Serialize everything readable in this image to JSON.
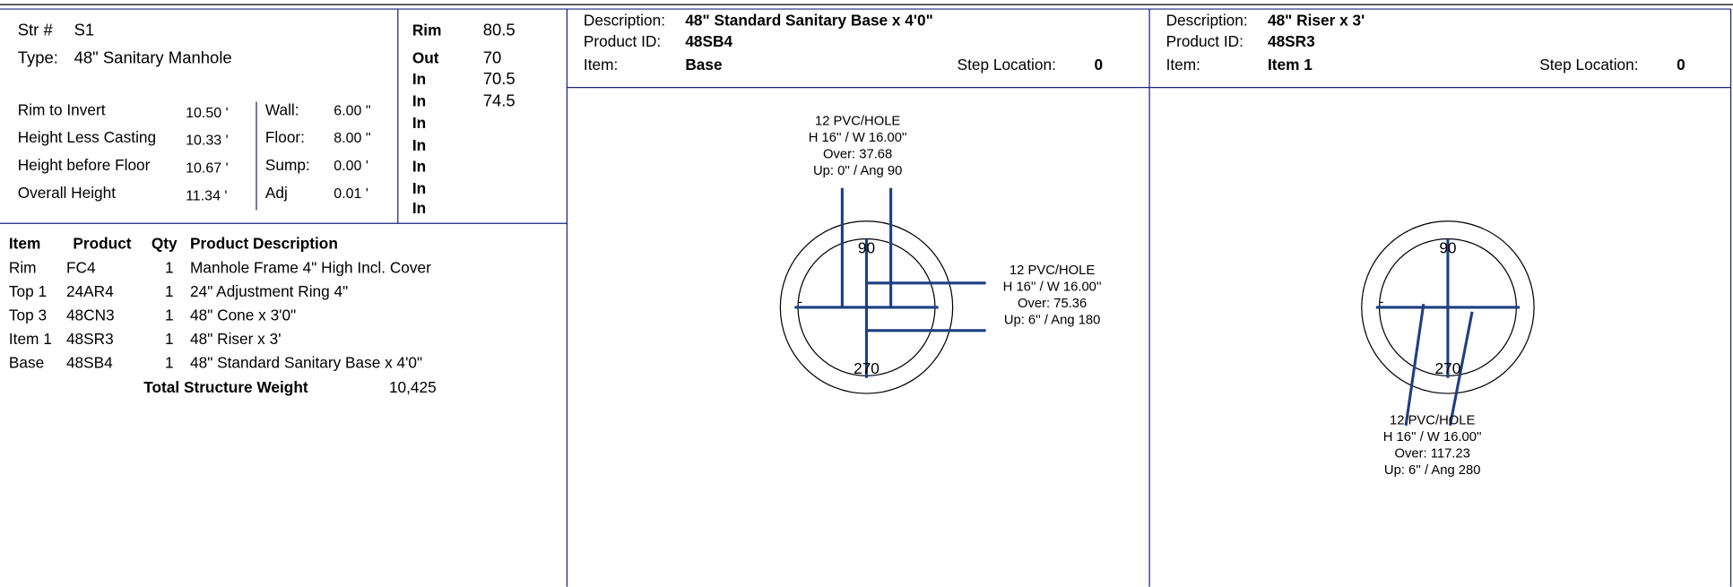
{
  "header": {
    "str_label": "Str #",
    "str": "S1",
    "type_label": "Type:",
    "type": "48\" Sanitary Manhole"
  },
  "levels": [
    {
      "label": "Rim",
      "value": "80.5"
    },
    {
      "label": "Out",
      "value": "70"
    },
    {
      "label": "In",
      "value": "70.5"
    },
    {
      "label": "In",
      "value": "74.5"
    },
    {
      "label": "In"
    },
    {
      "label": "In"
    },
    {
      "label": "In"
    },
    {
      "label": "In"
    },
    {
      "label": "In"
    }
  ],
  "dimensions": [
    {
      "label": "Rim to Invert",
      "value": "10.50 '",
      "label2": "Wall:",
      "value2": "6.00 \""
    },
    {
      "label": "Height Less Casting",
      "value": "10.33 '",
      "label2": "Floor:",
      "value2": "8.00 \""
    },
    {
      "label": "Height before Floor",
      "value": "10.67 '",
      "label2": "Sump:",
      "value2": "0.00 '"
    },
    {
      "label": "Overall Height",
      "value": "11.34 '",
      "label2": "Adj",
      "value2": "0.01 '"
    }
  ],
  "table": {
    "columns": [
      "Item",
      "Product",
      "Qty",
      "Product Description"
    ],
    "rows": [
      [
        "Rim",
        "FC4",
        "1",
        "Manhole Frame 4\" High Incl. Cover"
      ],
      [
        "Top 1",
        "24AR4",
        "1",
        "24\" Adjustment Ring 4\""
      ],
      [
        "Top 3",
        "48CN3",
        "1",
        "48\" Cone x 3'0\""
      ],
      [
        "Item 1",
        "48SR3",
        "1",
        "48\" Riser x 3'"
      ],
      [
        "Base",
        "48SB4",
        "1",
        "48\" Standard Sanitary Base x 4'0\""
      ]
    ],
    "total_label": "Total Structure Weight",
    "total": "10,425"
  },
  "panels": [
    {
      "description_label": "Description:",
      "description": "48\" Standard Sanitary Base x 4'0\"",
      "product_id_label": "Product ID:",
      "product_id": "48SB4",
      "item_label": "Item:",
      "item": "Base",
      "step_label": "Step Location:",
      "step": "0",
      "top_label": "90",
      "bottom_label": "270",
      "side_label": "-",
      "holes": [
        [
          "12 PVC/HOLE",
          "H 16'' / W 16.00''",
          "Over: 37.68",
          "Up: 0''  / Ang 90"
        ],
        [
          "12 PVC/HOLE",
          "H 16'' / W 16.00''",
          "Over: 75.36",
          "Up: 6''  / Ang 180"
        ]
      ]
    },
    {
      "description_label": "Description:",
      "description": "48\" Riser x 3'",
      "product_id_label": "Product ID:",
      "product_id": "48SR3",
      "item_label": "Item:",
      "item": "Item 1",
      "step_label": "Step Location:",
      "step": "0",
      "top_label": "90",
      "bottom_label": "270",
      "side_label": "-",
      "holes": [
        [
          "12 PVC/HOLE",
          "H 16'' / W 16.00''",
          "Over: 117.23",
          "Up: 6''  / Ang 280"
        ]
      ]
    }
  ]
}
